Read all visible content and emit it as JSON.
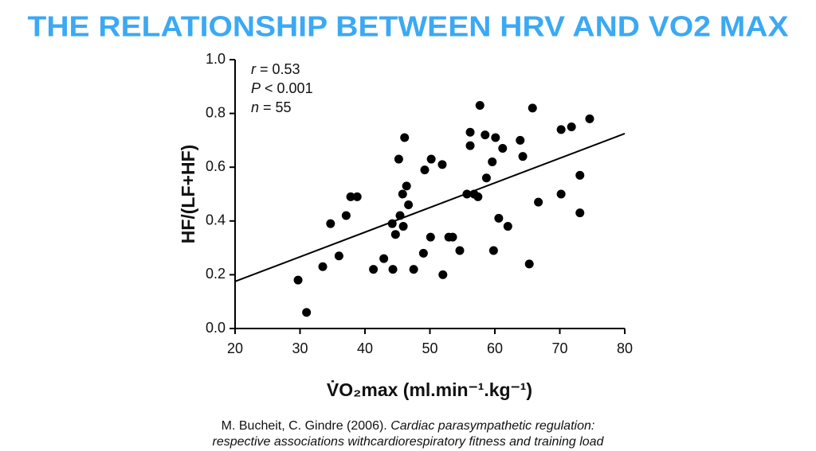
{
  "chart_data": {
    "type": "scatter",
    "title": "THE RELATIONSHIP BETWEEN HRV AND VO2 MAX",
    "x_label": "V̇O₂max (ml.min⁻¹.kg⁻¹)",
    "y_label": "HF/(LF+HF)",
    "annotations": [
      {
        "symbol": "r",
        "text": " = 0.53"
      },
      {
        "symbol": "P",
        "text": " < 0.001"
      },
      {
        "symbol": "n",
        "text": " = 55"
      }
    ],
    "xlim": [
      20,
      80
    ],
    "xticks": [
      20,
      30,
      40,
      50,
      60,
      70,
      80
    ],
    "ylim": [
      0,
      1
    ],
    "yticks": [
      {
        "value": 0,
        "label": "0.0"
      },
      0.2,
      0.4,
      0.6,
      0.8,
      {
        "value": 1,
        "label": "1.0"
      }
    ],
    "color": "#000000",
    "title_color": "#3ba9f3",
    "x": [
      29.7,
      31.0,
      33.5,
      34.7,
      36.0,
      37.1,
      37.8,
      38.8,
      41.3,
      42.9,
      44.2,
      44.3,
      44.7,
      45.2,
      45.4,
      45.8,
      45.9,
      46.1,
      46.4,
      46.7,
      47.5,
      49.0,
      49.2,
      50.1,
      50.2,
      51.9,
      52.0,
      52.9,
      53.5,
      54.6,
      55.7,
      56.2,
      56.2,
      56.8,
      57.4,
      57.7,
      58.5,
      58.7,
      59.6,
      59.8,
      60.1,
      60.6,
      61.2,
      62.0,
      63.9,
      64.3,
      65.3,
      65.8,
      66.7,
      70.2,
      70.2,
      71.8,
      73.1,
      73.1,
      74.6
    ],
    "y": [
      0.18,
      0.06,
      0.23,
      0.39,
      0.27,
      0.42,
      0.49,
      0.49,
      0.22,
      0.26,
      0.39,
      0.22,
      0.35,
      0.63,
      0.42,
      0.5,
      0.38,
      0.71,
      0.53,
      0.46,
      0.22,
      0.28,
      0.59,
      0.34,
      0.63,
      0.61,
      0.2,
      0.34,
      0.34,
      0.29,
      0.5,
      0.73,
      0.68,
      0.5,
      0.49,
      0.83,
      0.72,
      0.56,
      0.62,
      0.29,
      0.71,
      0.41,
      0.67,
      0.38,
      0.7,
      0.64,
      0.24,
      0.82,
      0.47,
      0.5,
      0.74,
      0.75,
      0.43,
      0.57,
      0.78
    ],
    "trend_line": {
      "x": [
        20,
        80
      ],
      "y": [
        0.175,
        0.725
      ]
    },
    "citation": {
      "authors": "M. Bucheit, C. Gindre (2006). ",
      "title_line1": "Cardiac parasympathetic regulation:",
      "title_line2": "respective associations withcardiorespiratory fitness and training load"
    }
  }
}
